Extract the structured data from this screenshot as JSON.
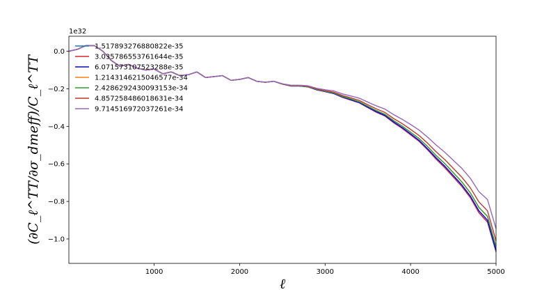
{
  "chart_data": {
    "type": "line",
    "xlabel": "ℓ",
    "ylabel": "(∂C_ℓ^TT/∂σ_dmeff)/C_ℓ^TT",
    "y_offset_label": "1e32",
    "xlim": [
      2,
      5000
    ],
    "ylim": [
      -1.13,
      0.08
    ],
    "x_ticks": [
      1000,
      2000,
      3000,
      4000,
      5000
    ],
    "x_tick_labels": [
      "1000",
      "2000",
      "3000",
      "4000",
      "5000"
    ],
    "y_ticks": [
      0.0,
      -0.2,
      -0.4,
      -0.6,
      -0.8,
      -1.0
    ],
    "y_tick_labels": [
      "0.0",
      "−0.2",
      "−0.4",
      "−0.6",
      "−0.8",
      "−1.0"
    ],
    "grid": false,
    "legend_position": "top-left",
    "x": [
      2,
      100,
      200,
      300,
      400,
      500,
      600,
      700,
      800,
      900,
      1000,
      1100,
      1200,
      1300,
      1400,
      1500,
      1600,
      1700,
      1800,
      1900,
      2000,
      2100,
      2200,
      2300,
      2400,
      2500,
      2600,
      2700,
      2800,
      2900,
      3000,
      3100,
      3200,
      3300,
      3400,
      3500,
      3600,
      3700,
      3800,
      3900,
      4000,
      4100,
      4200,
      4300,
      4400,
      4500,
      4600,
      4700,
      4800,
      4900,
      5000
    ],
    "series": [
      {
        "name": "1.517893276880822e-35",
        "color": "#1f77b4",
        "values": [
          0.0,
          0.01,
          0.03,
          0.03,
          0.0,
          -0.05,
          -0.08,
          -0.07,
          -0.09,
          -0.1,
          -0.095,
          -0.12,
          -0.11,
          -0.13,
          -0.125,
          -0.11,
          -0.14,
          -0.135,
          -0.13,
          -0.155,
          -0.15,
          -0.14,
          -0.16,
          -0.165,
          -0.16,
          -0.175,
          -0.185,
          -0.185,
          -0.19,
          -0.205,
          -0.215,
          -0.225,
          -0.245,
          -0.26,
          -0.275,
          -0.3,
          -0.325,
          -0.345,
          -0.38,
          -0.41,
          -0.445,
          -0.48,
          -0.525,
          -0.575,
          -0.62,
          -0.67,
          -0.72,
          -0.78,
          -0.86,
          -0.91,
          -1.07
        ]
      },
      {
        "name": "3.035786553761644e-35",
        "color": "#d62728",
        "values": [
          0.0,
          0.01,
          0.03,
          0.03,
          0.0,
          -0.05,
          -0.08,
          -0.07,
          -0.09,
          -0.1,
          -0.095,
          -0.12,
          -0.11,
          -0.13,
          -0.125,
          -0.11,
          -0.14,
          -0.135,
          -0.13,
          -0.155,
          -0.15,
          -0.14,
          -0.16,
          -0.165,
          -0.16,
          -0.175,
          -0.185,
          -0.185,
          -0.19,
          -0.205,
          -0.215,
          -0.225,
          -0.245,
          -0.26,
          -0.275,
          -0.3,
          -0.325,
          -0.345,
          -0.38,
          -0.41,
          -0.445,
          -0.48,
          -0.525,
          -0.575,
          -0.62,
          -0.67,
          -0.72,
          -0.78,
          -0.86,
          -0.91,
          -1.065
        ]
      },
      {
        "name": "6.071573107523288e-35",
        "color": "#0000ff",
        "values": [
          0.0,
          0.01,
          0.03,
          0.03,
          0.0,
          -0.05,
          -0.08,
          -0.07,
          -0.09,
          -0.1,
          -0.095,
          -0.12,
          -0.11,
          -0.13,
          -0.125,
          -0.11,
          -0.14,
          -0.135,
          -0.13,
          -0.155,
          -0.15,
          -0.14,
          -0.16,
          -0.165,
          -0.16,
          -0.175,
          -0.185,
          -0.185,
          -0.19,
          -0.205,
          -0.215,
          -0.225,
          -0.243,
          -0.258,
          -0.273,
          -0.298,
          -0.322,
          -0.342,
          -0.376,
          -0.406,
          -0.44,
          -0.475,
          -0.52,
          -0.568,
          -0.612,
          -0.662,
          -0.712,
          -0.772,
          -0.85,
          -0.9,
          -1.06
        ]
      },
      {
        "name": "1.214314621504657​7e-34",
        "color": "#ff7f0e",
        "values": [
          0.0,
          0.01,
          0.03,
          0.03,
          0.0,
          -0.05,
          -0.08,
          -0.07,
          -0.09,
          -0.1,
          -0.095,
          -0.12,
          -0.11,
          -0.13,
          -0.125,
          -0.11,
          -0.14,
          -0.135,
          -0.13,
          -0.155,
          -0.15,
          -0.14,
          -0.16,
          -0.165,
          -0.16,
          -0.175,
          -0.184,
          -0.184,
          -0.189,
          -0.203,
          -0.213,
          -0.222,
          -0.24,
          -0.254,
          -0.269,
          -0.293,
          -0.316,
          -0.336,
          -0.369,
          -0.398,
          -0.431,
          -0.465,
          -0.508,
          -0.556,
          -0.598,
          -0.647,
          -0.696,
          -0.755,
          -0.832,
          -0.88,
          -1.04
        ]
      },
      {
        "name": "2.4286292430093153e-34",
        "color": "#2ca02c",
        "values": [
          0.0,
          0.01,
          0.03,
          0.03,
          0.0,
          -0.05,
          -0.08,
          -0.07,
          -0.09,
          -0.1,
          -0.095,
          -0.12,
          -0.11,
          -0.13,
          -0.125,
          -0.11,
          -0.14,
          -0.135,
          -0.13,
          -0.155,
          -0.15,
          -0.14,
          -0.16,
          -0.165,
          -0.16,
          -0.175,
          -0.184,
          -0.184,
          -0.189,
          -0.203,
          -0.213,
          -0.222,
          -0.24,
          -0.254,
          -0.269,
          -0.293,
          -0.316,
          -0.336,
          -0.369,
          -0.398,
          -0.431,
          -0.465,
          -0.508,
          -0.556,
          -0.598,
          -0.647,
          -0.696,
          -0.755,
          -0.832,
          -0.88,
          -1.04
        ]
      },
      {
        "name": "4.857258486018631e-34",
        "color": "#c0392b",
        "values": [
          0.0,
          0.01,
          0.03,
          0.03,
          0.0,
          -0.05,
          -0.08,
          -0.07,
          -0.09,
          -0.1,
          -0.095,
          -0.12,
          -0.11,
          -0.13,
          -0.125,
          -0.11,
          -0.14,
          -0.135,
          -0.13,
          -0.155,
          -0.15,
          -0.14,
          -0.16,
          -0.165,
          -0.16,
          -0.174,
          -0.183,
          -0.183,
          -0.187,
          -0.201,
          -0.21,
          -0.218,
          -0.235,
          -0.248,
          -0.262,
          -0.285,
          -0.307,
          -0.326,
          -0.358,
          -0.385,
          -0.416,
          -0.449,
          -0.49,
          -0.536,
          -0.577,
          -0.624,
          -0.671,
          -0.728,
          -0.803,
          -0.85,
          -1.01
        ]
      },
      {
        "name": "9.714516972037261e-34",
        "color": "#9467bd",
        "values": [
          0.0,
          0.01,
          0.03,
          0.03,
          0.0,
          -0.05,
          -0.08,
          -0.07,
          -0.09,
          -0.1,
          -0.095,
          -0.12,
          -0.11,
          -0.13,
          -0.125,
          -0.11,
          -0.14,
          -0.135,
          -0.13,
          -0.155,
          -0.15,
          -0.14,
          -0.16,
          -0.165,
          -0.16,
          -0.173,
          -0.181,
          -0.181,
          -0.184,
          -0.197,
          -0.205,
          -0.211,
          -0.227,
          -0.238,
          -0.25,
          -0.271,
          -0.291,
          -0.308,
          -0.337,
          -0.362,
          -0.39,
          -0.42,
          -0.458,
          -0.5,
          -0.538,
          -0.581,
          -0.624,
          -0.677,
          -0.748,
          -0.79,
          -0.945
        ]
      }
    ]
  }
}
